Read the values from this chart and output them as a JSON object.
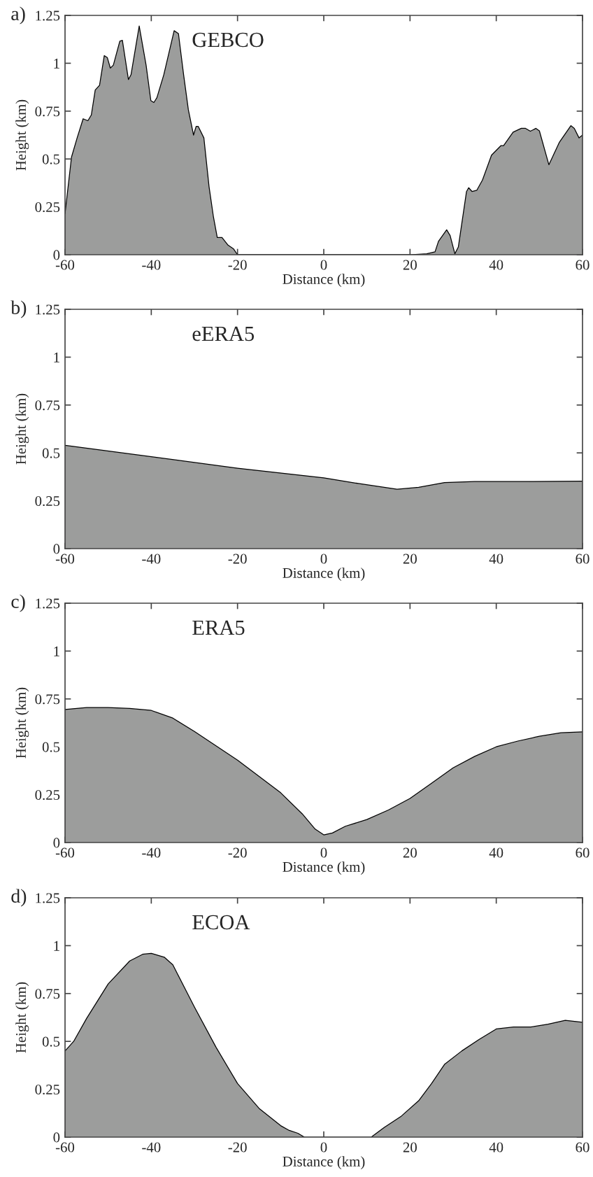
{
  "chart_data": [
    {
      "type": "area",
      "xlabel": "Distance (km)",
      "ylabel": "Height (km)",
      "annotations": [
        "a)",
        "GEBCO"
      ],
      "xlim": [
        -60,
        60
      ],
      "ylim": [
        0,
        1.25
      ],
      "xticks": [
        -60,
        -40,
        -20,
        0,
        20,
        40,
        60
      ],
      "yticks": [
        0,
        0.25,
        0.5,
        0.75,
        1,
        1.25
      ],
      "grid": false,
      "legend": false,
      "x": [
        -60,
        -58.5,
        -57.2,
        -55.8,
        -54.7,
        -53.9,
        -53.0,
        -52.0,
        -50.9,
        -50.2,
        -49.5,
        -48.8,
        -47.3,
        -46.7,
        -45.3,
        -44.7,
        -42.8,
        -41.2,
        -40.1,
        -39.4,
        -38.7,
        -37.1,
        -34.7,
        -33.7,
        -32.5,
        -31.4,
        -30.2,
        -29.6,
        -29.1,
        -27.8,
        -26.6,
        -25.6,
        -24.7,
        -23.6,
        -22.2,
        -20.9,
        -20,
        0,
        20,
        23.9,
        25.8,
        26.6,
        28.5,
        29.3,
        30.4,
        31.2,
        33.1,
        33.6,
        34.4,
        35.5,
        36.8,
        38.9,
        41.1,
        41.7,
        43.9,
        45.8,
        46.8,
        47.9,
        49.2,
        50.0,
        52.2,
        54.6,
        57.3,
        58.1,
        59.2,
        60
      ],
      "series": [
        {
          "color": "#9c9d9c",
          "values": [
            0.215,
            0.51,
            0.61,
            0.71,
            0.7,
            0.73,
            0.86,
            0.885,
            1.04,
            1.03,
            0.975,
            0.99,
            1.115,
            1.12,
            0.915,
            0.94,
            1.195,
            0.99,
            0.805,
            0.795,
            0.82,
            0.94,
            1.17,
            1.155,
            0.94,
            0.757,
            0.625,
            0.67,
            0.67,
            0.61,
            0.355,
            0.2,
            0.09,
            0.09,
            0.05,
            0.03,
            0,
            0,
            0,
            0.005,
            0.015,
            0.07,
            0.13,
            0.1,
            0.005,
            0.04,
            0.33,
            0.35,
            0.33,
            0.337,
            0.39,
            0.52,
            0.57,
            0.57,
            0.64,
            0.66,
            0.66,
            0.645,
            0.66,
            0.647,
            0.47,
            0.586,
            0.674,
            0.66,
            0.61,
            0.625
          ]
        }
      ]
    },
    {
      "type": "area",
      "xlabel": "Distance (km)",
      "ylabel": "Height (km)",
      "annotations": [
        "b)",
        "eERA5"
      ],
      "xlim": [
        -60,
        60
      ],
      "ylim": [
        0,
        1.25
      ],
      "xticks": [
        -60,
        -40,
        -20,
        0,
        20,
        40,
        60
      ],
      "yticks": [
        0,
        0.25,
        0.5,
        0.75,
        1,
        1.25
      ],
      "grid": false,
      "legend": false,
      "x": [
        -60,
        -40,
        -20,
        0,
        8,
        17,
        22,
        28,
        35,
        45,
        60
      ],
      "series": [
        {
          "color": "#9c9d9c",
          "values": [
            0.54,
            0.48,
            0.42,
            0.37,
            0.34,
            0.31,
            0.32,
            0.345,
            0.35,
            0.35,
            0.352
          ]
        }
      ]
    },
    {
      "type": "area",
      "xlabel": "Distance (km)",
      "ylabel": "Height (km)",
      "annotations": [
        "c)",
        "ERA5"
      ],
      "xlim": [
        -60,
        60
      ],
      "ylim": [
        0,
        1.25
      ],
      "xticks": [
        -60,
        -40,
        -20,
        0,
        20,
        40,
        60
      ],
      "yticks": [
        0,
        0.25,
        0.5,
        0.75,
        1,
        1.25
      ],
      "grid": false,
      "legend": false,
      "x": [
        -60,
        -55,
        -50,
        -45,
        -40,
        -35,
        -30,
        -20,
        -10,
        -5,
        -2,
        0,
        2,
        5,
        10,
        15,
        20,
        25,
        30,
        35,
        40,
        45,
        50,
        55,
        60
      ],
      "series": [
        {
          "color": "#9c9d9c",
          "values": [
            0.695,
            0.705,
            0.705,
            0.7,
            0.69,
            0.65,
            0.58,
            0.43,
            0.26,
            0.15,
            0.07,
            0.04,
            0.05,
            0.085,
            0.12,
            0.17,
            0.23,
            0.31,
            0.39,
            0.45,
            0.5,
            0.53,
            0.555,
            0.573,
            0.578
          ]
        }
      ]
    },
    {
      "type": "area",
      "xlabel": "Distance (km)",
      "ylabel": "Height (km)",
      "annotations": [
        "d)",
        "ECOA"
      ],
      "xlim": [
        -60,
        60
      ],
      "ylim": [
        0,
        1.25
      ],
      "xticks": [
        -60,
        -40,
        -20,
        0,
        20,
        40,
        60
      ],
      "yticks": [
        0,
        0.25,
        0.5,
        0.75,
        1,
        1.25
      ],
      "grid": false,
      "legend": false,
      "x": [
        -60,
        -58,
        -55,
        -50,
        -45,
        -42,
        -40,
        -37,
        -35,
        -30,
        -25,
        -20,
        -15,
        -10,
        -8,
        -6,
        -4.5,
        0,
        11,
        14,
        18,
        22,
        25,
        28,
        32,
        36,
        40,
        44,
        48,
        52,
        56,
        60
      ],
      "series": [
        {
          "color": "#9c9d9c",
          "values": [
            0.45,
            0.5,
            0.62,
            0.8,
            0.92,
            0.955,
            0.96,
            0.94,
            0.9,
            0.68,
            0.47,
            0.28,
            0.15,
            0.06,
            0.035,
            0.02,
            0,
            0,
            0,
            0.05,
            0.11,
            0.19,
            0.28,
            0.38,
            0.45,
            0.51,
            0.565,
            0.575,
            0.575,
            0.59,
            0.61,
            0.6
          ]
        }
      ]
    }
  ]
}
